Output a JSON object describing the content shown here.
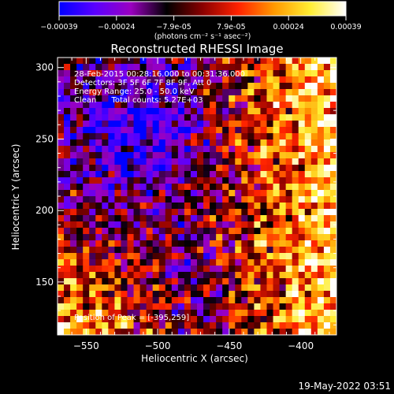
{
  "colorbar": {
    "ticks": [
      "-0.00039",
      "-0.00024",
      "-7.9e-05",
      "7.9e-05",
      "0.00024",
      "0.00039"
    ],
    "unit_label": "(photons cm⁻² s⁻¹ asec⁻²)",
    "colors": [
      "#0000ff",
      "#5a00ff",
      "#9a00c0",
      "#000000",
      "#8a0000",
      "#ff2200",
      "#ff9900",
      "#ffee33",
      "#ffffff"
    ]
  },
  "info": {
    "line1": "28-Feb-2015 00:28:16.000 to 00:31:36.000",
    "line2": "Detectors: 3F 5F 6F 7F 8F 9F, Att 0",
    "line3": "Energy Range: 25.0 - 50.0 keV",
    "line4": "Clean      Total counts: 5.27E+03",
    "peak": "Position of Peak = [-395,259]"
  },
  "footer": {
    "timestamp": "19-May-2022 03:51"
  },
  "chart_data": {
    "type": "heatmap",
    "title": "Reconstructed RHESSI Image",
    "xlabel": "Heliocentric X (arcsec)",
    "ylabel": "Heliocentric Y (arcsec)",
    "xlim": [
      -570,
      -375
    ],
    "ylim": [
      113,
      307
    ],
    "xticks": [
      -550,
      -500,
      -450,
      -400
    ],
    "yticks": [
      150,
      200,
      250,
      300
    ],
    "xtick_labels": [
      "−550",
      "−500",
      "−450",
      "−400"
    ],
    "ytick_labels": [
      "150",
      "200",
      "250",
      "300"
    ],
    "peak_position": [
      -395,
      259
    ],
    "value_range": [
      -0.00039,
      0.00039
    ]
  }
}
